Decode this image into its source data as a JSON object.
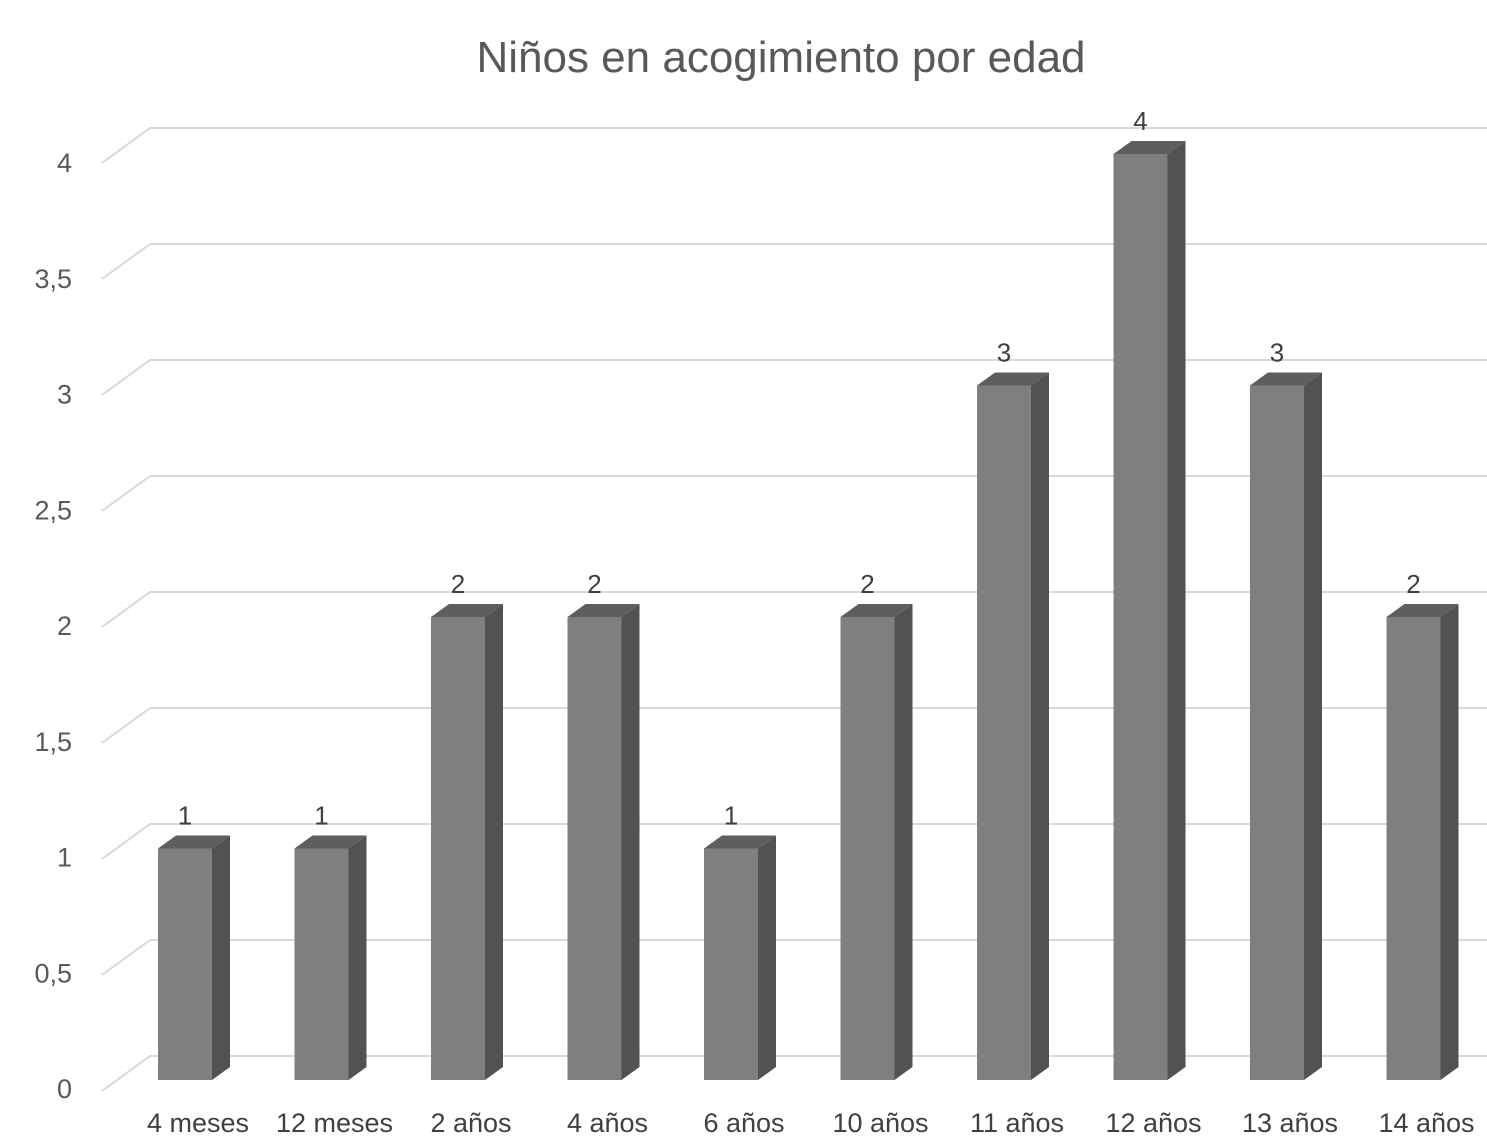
{
  "chart_data": {
    "type": "bar",
    "title": "Niños en acogimiento por edad",
    "categories": [
      "4 meses",
      "12 meses",
      "2 años",
      "4 años",
      "6 años",
      "10 años",
      "11 años",
      "12 años",
      "13 años",
      "14 años"
    ],
    "values": [
      1,
      1,
      2,
      2,
      1,
      2,
      3,
      4,
      3,
      2
    ],
    "ylim": [
      0,
      4
    ],
    "yticks": [
      "0",
      "0,5",
      "1",
      "1,5",
      "2",
      "2,5",
      "3",
      "3,5",
      "4"
    ],
    "data_labels": [
      "1",
      "1",
      "2",
      "2",
      "1",
      "2",
      "3",
      "4",
      "3",
      "2"
    ],
    "grid": true,
    "legend": "none",
    "colors": {
      "bar_front": "#7f7f7f",
      "bar_side": "#525252",
      "bar_top": "#5e5e5e",
      "grid": "#d9d9d9"
    }
  }
}
